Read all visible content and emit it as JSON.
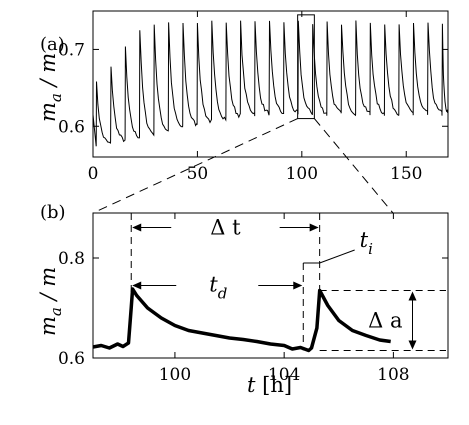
{
  "chart_data": [
    {
      "panel_label": "(a)",
      "type": "line",
      "xlim": [
        0,
        170
      ],
      "ylim": [
        0.56,
        0.75
      ],
      "x_ticks": [
        0,
        50,
        100,
        150
      ],
      "y_ticks": [
        0.6,
        0.7
      ],
      "y_tick_labels": [
        "0.6",
        "0.7"
      ],
      "ylabel": {
        "main": "m",
        "sub": "a",
        "rest": " / m"
      },
      "series": [
        {
          "spikes": {
            "period_h": 6.9,
            "first_peak_h": 1.7,
            "rise_from": 0.615,
            "peak_start": 0.65,
            "peak_plateau": 0.735,
            "decay_to_initial": 0.575,
            "decay_to_late": 0.615
          }
        }
      ],
      "zoom_box": {
        "x_range": [
          98,
          106
        ],
        "y_range": [
          0.61,
          0.745
        ]
      },
      "grid": false
    },
    {
      "panel_label": "(b)",
      "type": "line",
      "xlim": [
        97,
        110
      ],
      "ylim": [
        0.6,
        0.89
      ],
      "x_ticks": [
        100,
        104,
        108
      ],
      "y_ticks": [
        0.6,
        0.8
      ],
      "y_tick_labels": [
        "0.6",
        "0.8"
      ],
      "xlabel": {
        "var": "t",
        "unit": " [h]"
      },
      "ylabel": {
        "main": "m",
        "sub": "a",
        "rest": " / m"
      },
      "series": [
        {
          "x": [
            97,
            97.3,
            97.6,
            97.9,
            98.1,
            98.3,
            98.4,
            98.45,
            98.6,
            99.0,
            99.5,
            100.0,
            100.5,
            101.0,
            101.5,
            102.0,
            102.5,
            103.0,
            103.5,
            104.0,
            104.3,
            104.6,
            104.9,
            105.0,
            105.2,
            105.3,
            105.6,
            106.0,
            106.5,
            107.0,
            107.5,
            107.9
          ],
          "y": [
            0.622,
            0.625,
            0.62,
            0.628,
            0.623,
            0.63,
            0.7,
            0.738,
            0.725,
            0.7,
            0.68,
            0.665,
            0.655,
            0.65,
            0.645,
            0.64,
            0.637,
            0.633,
            0.628,
            0.625,
            0.618,
            0.621,
            0.615,
            0.62,
            0.66,
            0.735,
            0.705,
            0.675,
            0.655,
            0.645,
            0.636,
            0.633
          ]
        }
      ],
      "annotations": {
        "delta_t": {
          "label": "Δ t",
          "x_from": 98.4,
          "x_to": 105.3,
          "y": 0.861
        },
        "t_d": {
          "main": "t",
          "sub": "d",
          "x_from": 98.4,
          "x_to": 104.7,
          "y": 0.745
        },
        "t_i": {
          "main": "t",
          "sub": "i",
          "x_from": 104.7,
          "x_to": 105.3
        },
        "delta_a": {
          "label": "Δ a",
          "y_from": 0.615,
          "y_to": 0.735,
          "x": 108.7
        }
      },
      "grid": false
    }
  ]
}
